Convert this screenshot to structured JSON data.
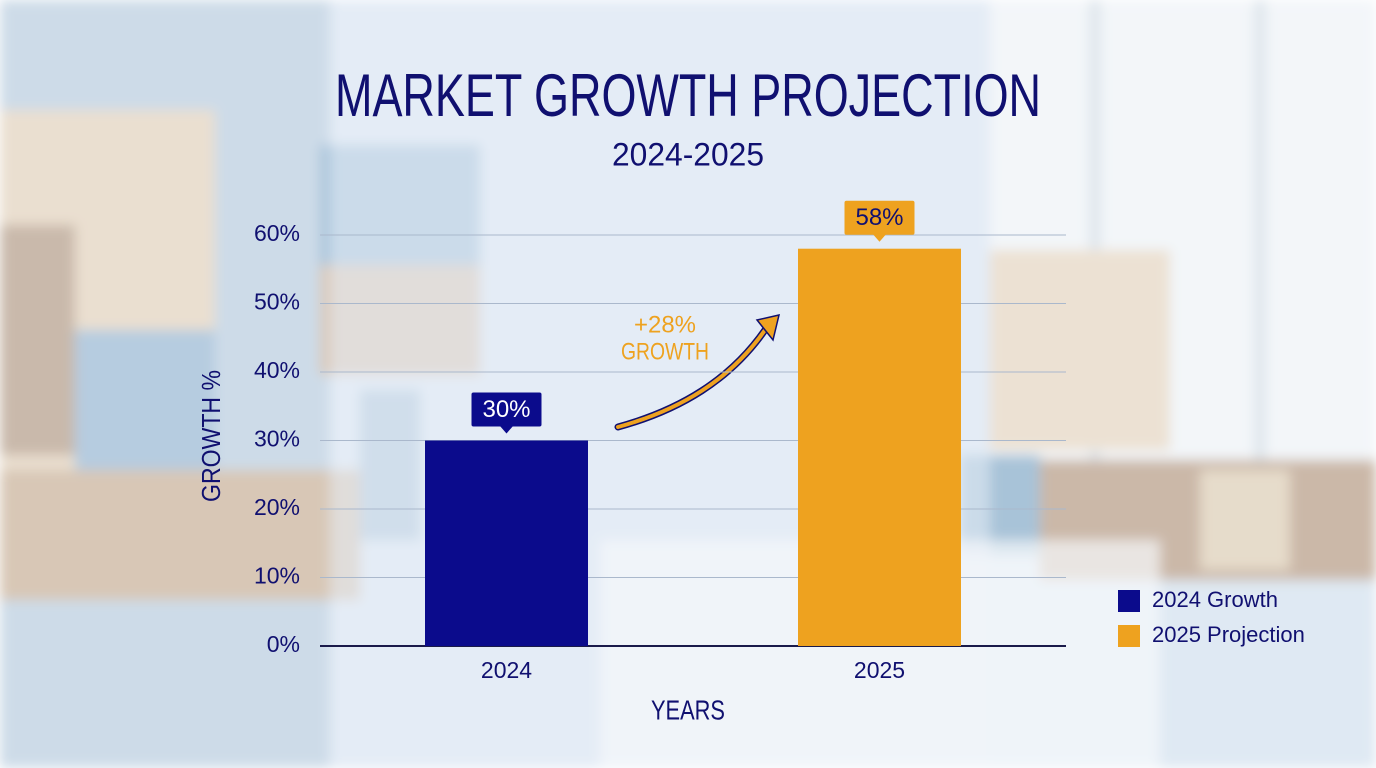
{
  "chart_data": {
    "type": "bar",
    "title": "MARKET GROWTH PROJECTION",
    "subtitle": "2024-2025",
    "x_label": "YEARS",
    "y_label": "GROWTH %",
    "categories": [
      "2024",
      "2025"
    ],
    "series": [
      {
        "name": "2024 Growth",
        "color": "#0b0b8c",
        "values": [
          30,
          null
        ],
        "value_labels": [
          "30%",
          null
        ]
      },
      {
        "name": "2025 Projection",
        "color": "#eea21f",
        "values": [
          null,
          58
        ],
        "value_labels": [
          null,
          "58%"
        ]
      }
    ],
    "annotation": [
      "+28%",
      "GROWTH"
    ],
    "ylim": [
      0,
      60
    ],
    "yticks": [
      {
        "value": 0,
        "label": "0%"
      },
      {
        "value": 10,
        "label": "10%"
      },
      {
        "value": 20,
        "label": "20%"
      },
      {
        "value": 30,
        "label": "30%"
      },
      {
        "value": 40,
        "label": "40%"
      },
      {
        "value": 50,
        "label": "50%"
      },
      {
        "value": 60,
        "label": "60%"
      }
    ],
    "grid": true,
    "legend": "right"
  }
}
